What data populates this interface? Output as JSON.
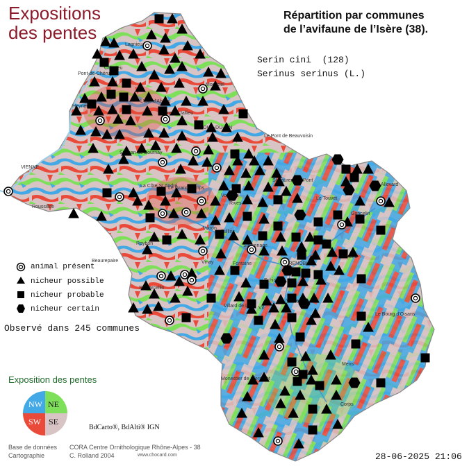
{
  "header": {
    "title_line1": "Expositions",
    "title_line2": "des pentes",
    "subtitle_line1": "Répartition par communes",
    "subtitle_line2": "de l’avifaune de l’Isère (38)."
  },
  "species": {
    "common": "Serin cini  (128)",
    "latin": "Serinus serinus (L.)"
  },
  "legend": {
    "present": "animal présent",
    "possible": "nicheur possible",
    "probable": "nicheur probable",
    "certain": "nicheur certain"
  },
  "observed": "Observé dans 245 communes",
  "exposure": {
    "title": "Exposition des pentes",
    "nw": "NW",
    "ne": "NE",
    "sw": "SW",
    "se": "SE",
    "colors": {
      "nw": "#43a9e6",
      "ne": "#7ee05a",
      "sw": "#e94a3a",
      "se": "#d8c4c4"
    }
  },
  "source": "BdCarto®, BdAlti® IGN",
  "credits": {
    "db_label": "Base de données",
    "db_value": "CORA Centre Ornithologique Rhône-Alpes - 38",
    "carto_label": "Cartographie",
    "carto_value": "C. Rolland 2004",
    "website": "www.chocard.com"
  },
  "timestamp": "28-06-2025 21:06",
  "place_labels": [
    "VIENNE",
    "TOUR-DU-PIN",
    "Le Pont de Beauvoisin",
    "Le Touvet",
    "Allevard",
    "GRENOBLE",
    "Vizille",
    "Fontaine",
    "Voiron",
    "St Marcellin",
    "Villard de Lans",
    "Le Bourg d'Oisans",
    "Monestier de Clermont",
    "Mens",
    "Corps",
    "Crémieu",
    "Bourgoin-Jallieu",
    "La Côte St André",
    "Roybon",
    "Vinay",
    "Rives",
    "Goncelin",
    "Domène",
    "Vif",
    "Heyrieux",
    "St Jean de Bournay",
    "Beaurepaire",
    "Le Grand Lemps",
    "Roussillon",
    "Pont-de-Chéruy",
    "L'Isle d'Abeau",
    "Tullins",
    "Voreppe",
    "Sassenage",
    "Echirolles",
    "Lagnieu",
    "Morestel",
    "St Laurent du Pont"
  ]
}
